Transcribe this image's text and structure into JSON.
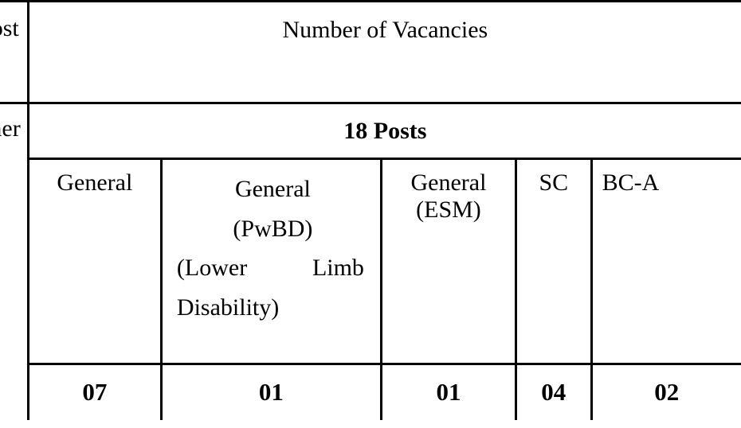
{
  "table": {
    "header_left": "ost",
    "header_right": "Number  of Vacancies",
    "row_label": "ner",
    "posts_header": "18 Posts",
    "columns": [
      {
        "label": "General",
        "value": "07"
      },
      {
        "label_lines": [
          "General",
          "(PwBD)",
          "(Lower",
          "Limb",
          "Disability)"
        ],
        "value": "01"
      },
      {
        "label_lines": [
          "General",
          "(ESM)"
        ],
        "value": "01"
      },
      {
        "label": "SC",
        "value": "04"
      },
      {
        "label": "BC-A",
        "value": "02"
      }
    ],
    "border_color": "#000000",
    "background_color": "#ffffff",
    "text_color": "#000000",
    "font_family": "Georgia, serif",
    "header_fontsize": 30,
    "body_fontsize": 30,
    "value_fontsize": 31
  }
}
